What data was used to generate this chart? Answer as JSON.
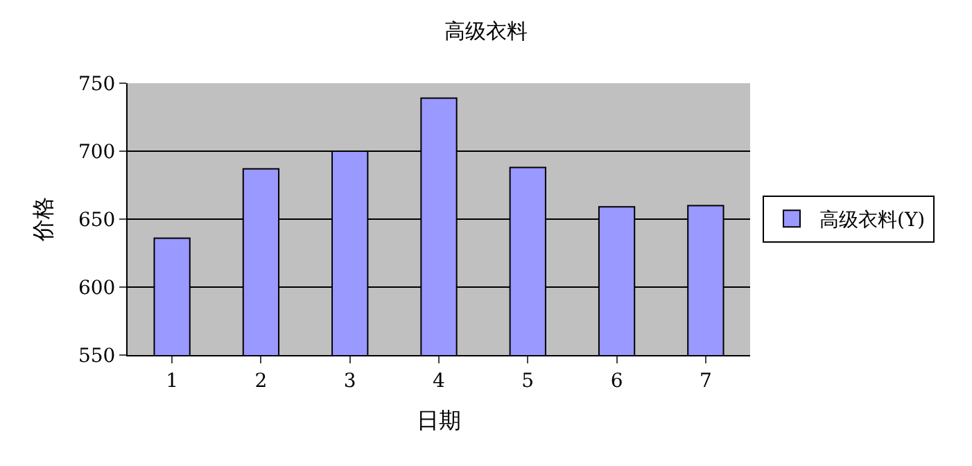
{
  "chart_data": {
    "type": "bar",
    "title": "高级衣料",
    "xlabel": "日期",
    "ylabel": "价格",
    "categories": [
      "1",
      "2",
      "3",
      "4",
      "5",
      "6",
      "7"
    ],
    "series": [
      {
        "name": "高级衣料(Y)",
        "color": "#9999ff",
        "values": [
          636,
          687,
          700,
          739,
          688,
          659,
          660
        ]
      }
    ],
    "ylim": [
      550,
      750
    ],
    "yticks": [
      550,
      600,
      650,
      700,
      750
    ],
    "grid": "y",
    "legend": "right"
  }
}
